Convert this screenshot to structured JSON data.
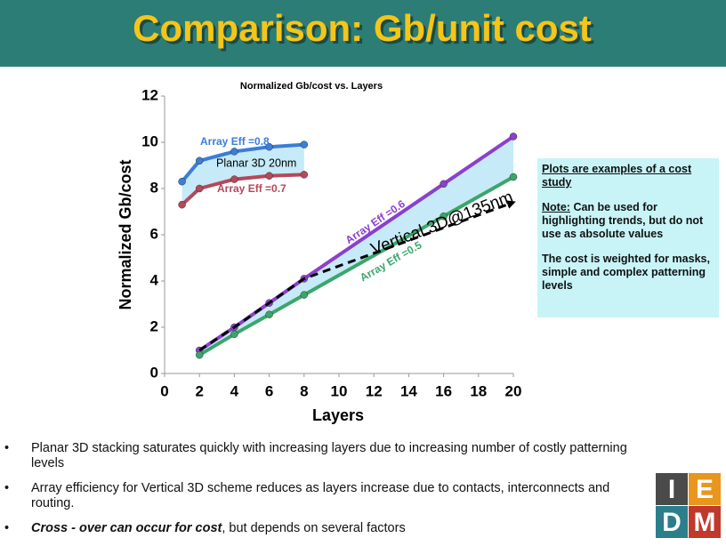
{
  "header": {
    "title": "Comparison: Gb/unit cost"
  },
  "chart_data": {
    "type": "line",
    "title": "Normalized Gb/cost vs. Layers",
    "x_label": "Layers",
    "y_label": "Normalized Gb/cost",
    "xlim": [
      0,
      20
    ],
    "ylim": [
      0,
      12
    ],
    "xticks": [
      0,
      2,
      4,
      6,
      8,
      10,
      12,
      14,
      16,
      18,
      20
    ],
    "yticks": [
      0,
      2,
      4,
      6,
      8,
      10,
      12
    ],
    "shading_color": "#c6eaf7",
    "annotations": [
      "Planar 3D 20nm"
    ],
    "series": [
      {
        "name": "Array Eff =0.8",
        "color": "#3b7dd8",
        "x": [
          1,
          2,
          4,
          6,
          8
        ],
        "values": [
          8.3,
          9.2,
          9.6,
          9.8,
          9.9
        ]
      },
      {
        "name": "Array Eff =0.7",
        "color": "#b5485a",
        "x": [
          1,
          2,
          4,
          6,
          8
        ],
        "values": [
          7.3,
          8.0,
          8.4,
          8.55,
          8.6
        ]
      },
      {
        "name": "Array Eff =0.6",
        "color": "#8b3fcf",
        "x": [
          2,
          4,
          6,
          8,
          16,
          20
        ],
        "values": [
          1.0,
          2.0,
          3.05,
          4.1,
          8.2,
          10.25
        ]
      },
      {
        "name": "Array Eff =0.5",
        "color": "#3aa66b",
        "x": [
          2,
          4,
          6,
          8,
          16,
          20
        ],
        "values": [
          0.8,
          1.7,
          2.55,
          3.4,
          6.8,
          8.5
        ]
      },
      {
        "name": "Vertical 3D@135nm",
        "color": "#000000",
        "dashed": true,
        "x": [
          2,
          4,
          6,
          8,
          20
        ],
        "values": [
          1.0,
          2.0,
          3.05,
          4.1,
          7.4
        ]
      }
    ]
  },
  "note_box": {
    "heading": "Plots are examples of a cost study",
    "note_label": "Note:",
    "note_text": "Can be used for highlighting trends, but do not use as absolute values",
    "weighting": "The cost is weighted for masks, simple and complex patterning levels"
  },
  "bullets": [
    {
      "text": "Planar 3D stacking saturates quickly with increasing layers due to increasing number of costly patterning levels"
    },
    {
      "text": "Array efficiency for Vertical 3D scheme reduces as layers increase due to contacts, interconnects and routing."
    },
    {
      "emphasis": "Cross - over can occur for cost",
      "text": ", but depends on several factors"
    }
  ],
  "logo": {
    "letters": [
      "I",
      "E",
      "D",
      "M"
    ]
  }
}
